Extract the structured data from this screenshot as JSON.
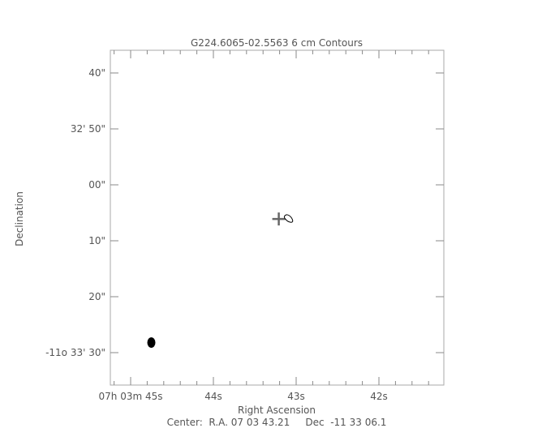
{
  "chart_data": {
    "type": "contour",
    "title": "G224.6065-02.5563 6 cm Contours",
    "xlabel": "Right Ascension",
    "ylabel": "Declination",
    "footer": "Center:  R.A. 07 03 43.21     Dec  -11 33 06.1",
    "x_ticks": [
      {
        "sec": 45,
        "label": "07h 03m 45s"
      },
      {
        "sec": 44,
        "label": "44s"
      },
      {
        "sec": 43,
        "label": "43s"
      },
      {
        "sec": 42,
        "label": "42s"
      }
    ],
    "x_tick_parts": [
      [
        [
          "07",
          "h"
        ],
        [
          "03",
          "m"
        ],
        [
          "45",
          "s"
        ]
      ],
      [
        [
          "44",
          "s"
        ]
      ],
      [
        [
          "43",
          "s"
        ]
      ],
      [
        [
          "42",
          "s"
        ]
      ]
    ],
    "xlim_sec": [
      45.25,
      41.8
    ],
    "x_minor_step_sec": 0.2,
    "y_ticks": [
      {
        "arcsec": 40,
        "label": "40\""
      },
      {
        "arcsec": 50,
        "label": "32' 50\""
      },
      {
        "arcsec": 60,
        "label": "00\""
      },
      {
        "arcsec": 70,
        "label": "10\""
      },
      {
        "arcsec": 80,
        "label": "20\""
      },
      {
        "arcsec": 90,
        "label": "-11o 33' 30\""
      }
    ],
    "ylim_arcsec_below_-11_32_00": [
      36,
      96
    ],
    "center_marker": {
      "ra_sec": 43.21,
      "dec_arcsec": 66.1,
      "symbol": "plus"
    },
    "contours": [
      {
        "ra_sec": 43.1,
        "dec_arcsec": 66.0,
        "level": 1
      }
    ],
    "beam": {
      "ra_sec": 44.75,
      "dec_arcsec": 88.2
    },
    "colors": {
      "axis": "#555555",
      "marker": "#666666",
      "contour": "#000000",
      "beam": "#000000"
    }
  }
}
